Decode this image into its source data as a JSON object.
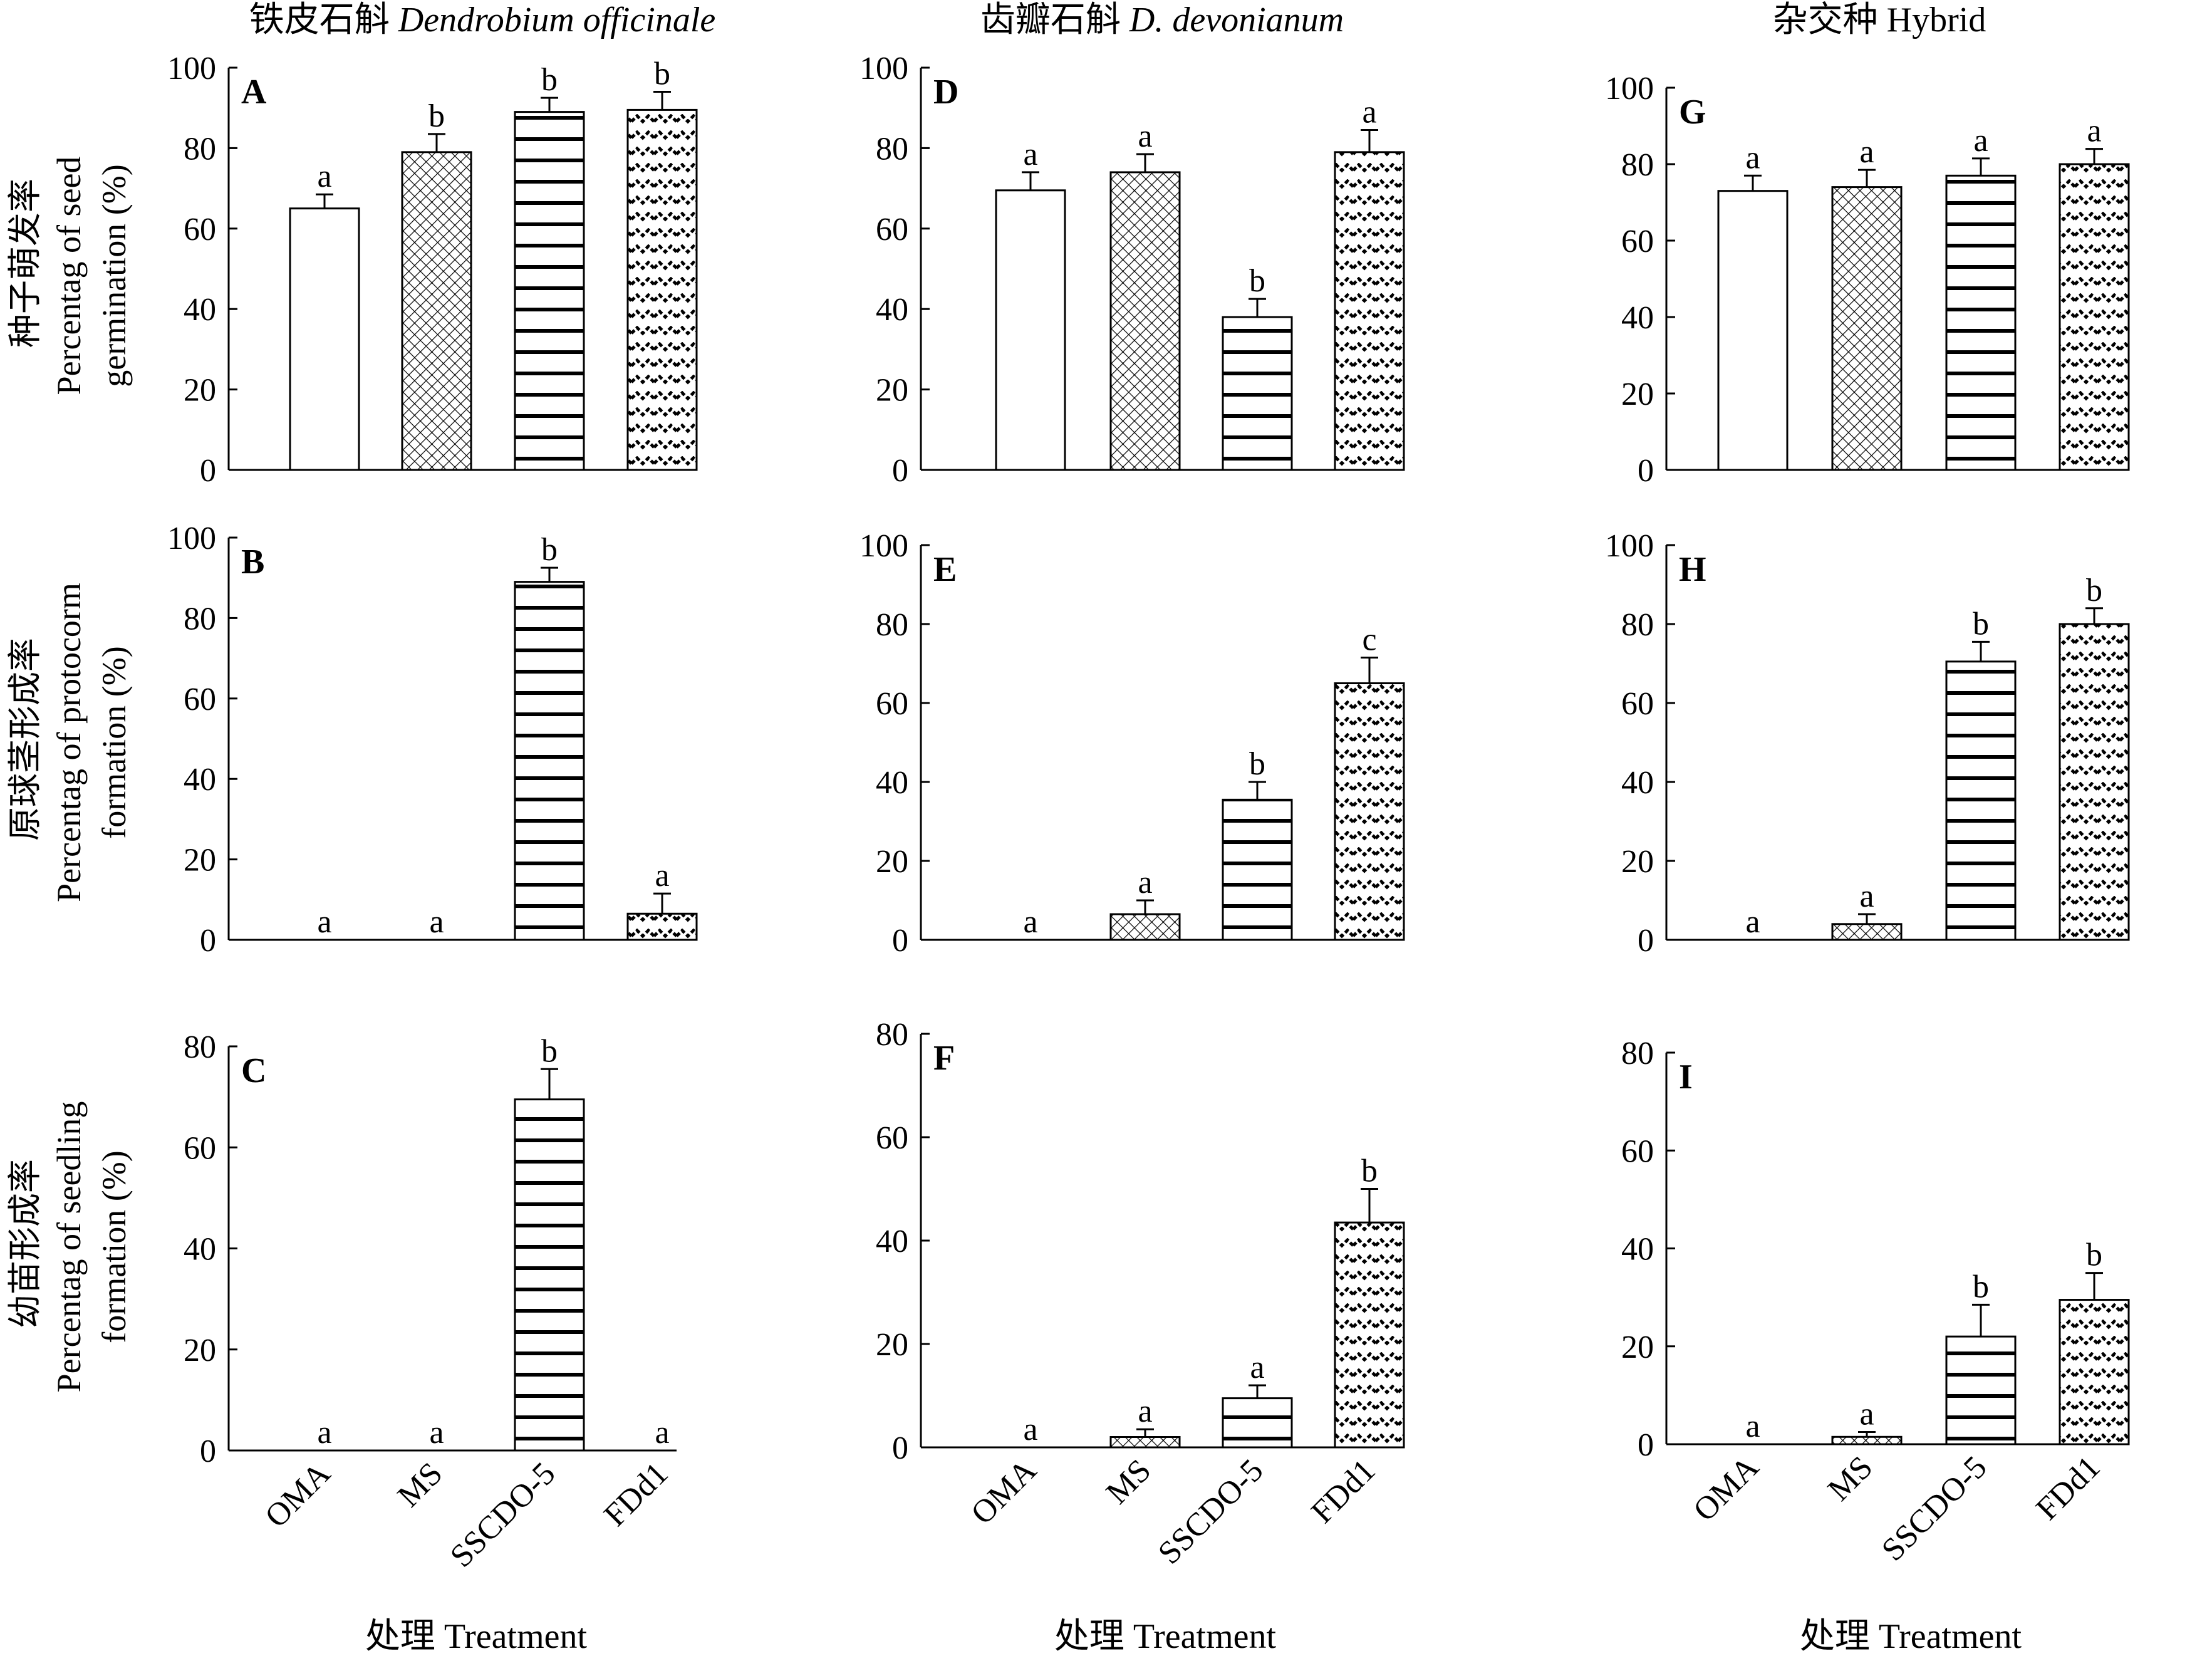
{
  "x_labels": [
    "OMA",
    "MS",
    "SSCDO-5",
    "FDd1"
  ],
  "x_axis_title": "处理 Treatment",
  "columns": [
    {
      "title_cn": "铁皮石斛 ",
      "title_latin": "Dendrobium officinale"
    },
    {
      "title_cn": "齿瓣石斛 ",
      "title_latin": "D. devonianum"
    },
    {
      "title_cn": "杂交种 ",
      "title_latin": "Hybrid"
    }
  ],
  "rows": [
    {
      "title_cn": "种子萌发率",
      "title_en_1": "Percentag of seed",
      "title_en_2": "germination (%)"
    },
    {
      "title_cn": "原球茎形成率",
      "title_en_1": "Percentag of protocorm",
      "title_en_2": "formation (%)"
    },
    {
      "title_cn": "幼苗形成率",
      "title_en_1": "Percentag of seedling",
      "title_en_2": "formation (%)"
    }
  ],
  "chart_data": [
    {
      "panel": "A",
      "type": "bar",
      "ylim": [
        0,
        100
      ],
      "ticks": [
        0,
        20,
        40,
        60,
        80,
        100
      ],
      "categories": [
        "OMA",
        "MS",
        "SSCDO-5",
        "FDd1"
      ],
      "values": [
        65,
        79,
        89,
        89.5
      ],
      "errors": [
        3.5,
        4.5,
        3.5,
        4.5
      ],
      "letters": [
        "a",
        "b",
        "b",
        "b"
      ]
    },
    {
      "panel": "B",
      "type": "bar",
      "ylim": [
        0,
        100
      ],
      "ticks": [
        0,
        20,
        40,
        60,
        80,
        100
      ],
      "categories": [
        "OMA",
        "MS",
        "SSCDO-5",
        "FDd1"
      ],
      "values": [
        0,
        0,
        89,
        6.5
      ],
      "errors": [
        0,
        0,
        3.5,
        5
      ],
      "letters": [
        "a",
        "a",
        "b",
        "a"
      ]
    },
    {
      "panel": "C",
      "type": "bar",
      "ylim": [
        0,
        80
      ],
      "ticks": [
        0,
        20,
        40,
        60,
        80
      ],
      "categories": [
        "OMA",
        "MS",
        "SSCDO-5",
        "FDd1"
      ],
      "values": [
        0,
        0,
        69.5,
        0
      ],
      "errors": [
        0,
        0,
        6,
        0
      ],
      "letters": [
        "a",
        "a",
        "b",
        "a"
      ]
    },
    {
      "panel": "D",
      "type": "bar",
      "ylim": [
        0,
        100
      ],
      "ticks": [
        0,
        20,
        40,
        60,
        80,
        100
      ],
      "categories": [
        "OMA",
        "MS",
        "SSCDO-5",
        "FDd1"
      ],
      "values": [
        69.5,
        74,
        38,
        79
      ],
      "errors": [
        4.5,
        4.5,
        4.5,
        5.5
      ],
      "letters": [
        "a",
        "a",
        "b",
        "a"
      ]
    },
    {
      "panel": "E",
      "type": "bar",
      "ylim": [
        0,
        100
      ],
      "ticks": [
        0,
        20,
        40,
        60,
        80,
        100
      ],
      "categories": [
        "OMA",
        "MS",
        "SSCDO-5",
        "FDd1"
      ],
      "values": [
        0,
        6.5,
        35.5,
        65
      ],
      "errors": [
        0,
        3.5,
        4.5,
        6.5
      ],
      "letters": [
        "a",
        "a",
        "b",
        "c"
      ]
    },
    {
      "panel": "F",
      "type": "bar",
      "ylim": [
        0,
        80
      ],
      "ticks": [
        0,
        20,
        40,
        60,
        80
      ],
      "categories": [
        "OMA",
        "MS",
        "SSCDO-5",
        "FDd1"
      ],
      "values": [
        0,
        2,
        9.5,
        43.5
      ],
      "errors": [
        0,
        1.5,
        2.5,
        6.5
      ],
      "letters": [
        "a",
        "a",
        "a",
        "b"
      ]
    },
    {
      "panel": "G",
      "type": "bar",
      "ylim": [
        0,
        100
      ],
      "ticks": [
        0,
        20,
        40,
        60,
        80,
        100
      ],
      "categories": [
        "OMA",
        "MS",
        "SSCDO-5",
        "FDd1"
      ],
      "values": [
        73,
        74,
        77,
        80
      ],
      "errors": [
        4,
        4.5,
        4.5,
        4
      ],
      "letters": [
        "a",
        "a",
        "a",
        "a"
      ]
    },
    {
      "panel": "H",
      "type": "bar",
      "ylim": [
        0,
        100
      ],
      "ticks": [
        0,
        20,
        40,
        60,
        80,
        100
      ],
      "categories": [
        "OMA",
        "MS",
        "SSCDO-5",
        "FDd1"
      ],
      "values": [
        0,
        4,
        70.5,
        80
      ],
      "errors": [
        0,
        2.5,
        5,
        4
      ],
      "letters": [
        "a",
        "a",
        "b",
        "b"
      ]
    },
    {
      "panel": "I",
      "type": "bar",
      "ylim": [
        0,
        80
      ],
      "ticks": [
        0,
        20,
        40,
        60,
        80
      ],
      "categories": [
        "OMA",
        "MS",
        "SSCDO-5",
        "FDd1"
      ],
      "values": [
        0,
        1.5,
        22,
        29.5
      ],
      "errors": [
        0,
        1,
        6.5,
        5.5
      ],
      "letters": [
        "a",
        "a",
        "b",
        "b"
      ]
    }
  ]
}
